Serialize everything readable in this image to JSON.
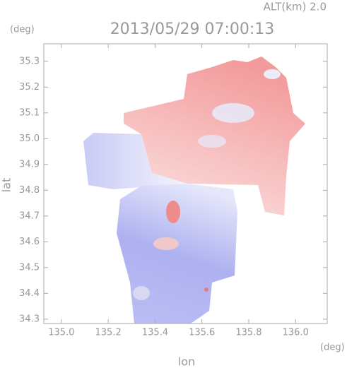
{
  "chart_data": {
    "type": "map",
    "title": "2013/05/29 07:00:13",
    "annotation": "ALT(km) 2.0",
    "x_label": "lon",
    "y_label": "lat",
    "x_unit": "(deg)",
    "y_unit": "(deg)",
    "xlim": [
      134.925,
      136.135
    ],
    "ylim": [
      34.283,
      35.368
    ],
    "xticks": [
      {
        "value": 135,
        "label": "135.0"
      },
      135.2,
      135.4,
      135.6,
      135.8,
      {
        "value": 136,
        "label": "136.0"
      }
    ],
    "yticks": [
      34.3,
      34.4,
      34.5,
      34.6,
      34.7,
      34.8,
      34.9,
      {
        "value": 35,
        "label": "35.0"
      },
      35.1,
      35.2,
      35.3
    ]
  }
}
